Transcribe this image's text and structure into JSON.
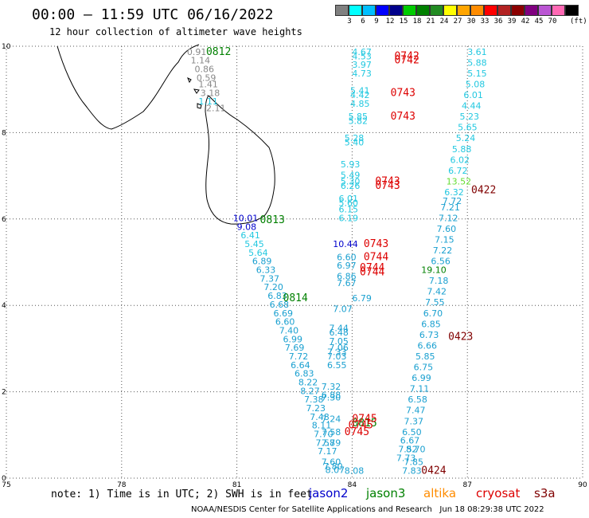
{
  "header": {
    "title": "00:00 – 11:59 UTC 06/16/2022",
    "subtitle": "12 hour collection of altimeter wave heights"
  },
  "legend": {
    "colors": [
      "#808080",
      "#00ffff",
      "#00bfff",
      "#0000ff",
      "#00008b",
      "#00cc00",
      "#008000",
      "#228b22",
      "#ffff00",
      "#ffa500",
      "#ff8c00",
      "#ff0000",
      "#b22222",
      "#8b0000",
      "#800080",
      "#ba55d3",
      "#ff69b4",
      "#000000"
    ],
    "labels": [
      "3",
      "6",
      "9",
      "12",
      "15",
      "18",
      "21",
      "24",
      "27",
      "30",
      "33",
      "36",
      "39",
      "42",
      "45",
      "70"
    ],
    "unit": "(ft)"
  },
  "footer": {
    "note": "note: 1) Time is in UTC; 2) SWH is in feet",
    "satellites": [
      {
        "name": "jason2",
        "color": "#0000cc"
      },
      {
        "name": "jason3",
        "color": "#008000"
      },
      {
        "name": "altika",
        "color": "#ff8c00"
      },
      {
        "name": "cryosat",
        "color": "#dd0000"
      },
      {
        "name": "s3a",
        "color": "#800000"
      }
    ],
    "credit": "NOAA/NESDIS Center for Satellite Applications and Research",
    "timestamp": "Jun 18 08:29:38 UTC 2022"
  },
  "chart_data": {
    "type": "scatter",
    "title": "12 hour collection of altimeter wave heights",
    "xlim": [
      75,
      90
    ],
    "ylim": [
      0,
      10
    ],
    "xticks": [
      75,
      78,
      81,
      84,
      87,
      90
    ],
    "yticks": [
      0,
      2,
      4,
      6,
      8,
      10
    ],
    "grid": true,
    "colors": {
      "light": "#22c8e0",
      "mid": "#1aa0d0",
      "gray": "#888888",
      "blue": "#0000cc",
      "green": "#008000",
      "lime": "#66dd33",
      "red": "#dd0000",
      "maroon": "#800000"
    },
    "time_labels": [
      {
        "text": "0812",
        "x": 80.2,
        "y": 9.8,
        "c": "green"
      },
      {
        "text": "0813",
        "x": 81.6,
        "y": 5.9,
        "c": "green"
      },
      {
        "text": "0814",
        "x": 82.2,
        "y": 4.1,
        "c": "green"
      },
      {
        "text": "0815",
        "x": 84.0,
        "y": 1.2,
        "c": "green"
      },
      {
        "text": "0742",
        "x": 85.1,
        "y": 9.7,
        "c": "red"
      },
      {
        "text": "0742",
        "x": 85.1,
        "y": 9.6,
        "c": "red"
      },
      {
        "text": "0743",
        "x": 85.0,
        "y": 8.85,
        "c": "red"
      },
      {
        "text": "0743",
        "x": 85.0,
        "y": 8.3,
        "c": "red"
      },
      {
        "text": "0743",
        "x": 84.6,
        "y": 6.8,
        "c": "red"
      },
      {
        "text": "0743",
        "x": 84.6,
        "y": 6.7,
        "c": "red"
      },
      {
        "text": "0743",
        "x": 84.3,
        "y": 5.35,
        "c": "red"
      },
      {
        "text": "0744",
        "x": 84.3,
        "y": 5.05,
        "c": "red"
      },
      {
        "text": "0744",
        "x": 84.2,
        "y": 4.8,
        "c": "red"
      },
      {
        "text": "0744",
        "x": 84.2,
        "y": 4.7,
        "c": "red"
      },
      {
        "text": "0745",
        "x": 84.0,
        "y": 1.3,
        "c": "red"
      },
      {
        "text": "0745",
        "x": 83.9,
        "y": 1.15,
        "c": "red"
      },
      {
        "text": "0745",
        "x": 83.8,
        "y": 1.0,
        "c": "red"
      },
      {
        "text": "0422",
        "x": 87.1,
        "y": 6.6,
        "c": "maroon"
      },
      {
        "text": "0423",
        "x": 86.5,
        "y": 3.2,
        "c": "maroon"
      },
      {
        "text": "0424",
        "x": 85.8,
        "y": 0.1,
        "c": "maroon"
      }
    ],
    "wave_heights": [
      {
        "text": "0.91",
        "x": 79.7,
        "y": 9.8,
        "c": "gray"
      },
      {
        "text": "1.14",
        "x": 79.8,
        "y": 9.6,
        "c": "gray"
      },
      {
        "text": "0.86",
        "x": 79.9,
        "y": 9.4,
        "c": "gray"
      },
      {
        "text": "0.59",
        "x": 79.95,
        "y": 9.2,
        "c": "gray"
      },
      {
        "text": "1.41",
        "x": 80.0,
        "y": 9.05,
        "c": "gray"
      },
      {
        "text": "3.18",
        "x": 80.05,
        "y": 8.85,
        "c": "gray"
      },
      {
        "text": "1.11",
        "x": 80.0,
        "y": 8.65,
        "c": "light"
      },
      {
        "text": "2.11",
        "x": 80.2,
        "y": 8.5,
        "c": "gray"
      },
      {
        "text": "10.01",
        "x": 80.9,
        "y": 5.95,
        "c": "blue"
      },
      {
        "text": "9.08",
        "x": 81.0,
        "y": 5.75,
        "c": "blue"
      },
      {
        "text": "6.41",
        "x": 81.1,
        "y": 5.55,
        "c": "light"
      },
      {
        "text": "5.45",
        "x": 81.2,
        "y": 5.35,
        "c": "light"
      },
      {
        "text": "5.64",
        "x": 81.3,
        "y": 5.15,
        "c": "light"
      },
      {
        "text": "6.89",
        "x": 81.4,
        "y": 4.95,
        "c": "mid"
      },
      {
        "text": "6.33",
        "x": 81.5,
        "y": 4.75,
        "c": "mid"
      },
      {
        "text": "7.37",
        "x": 81.6,
        "y": 4.55,
        "c": "mid"
      },
      {
        "text": "7.20",
        "x": 81.7,
        "y": 4.35,
        "c": "mid"
      },
      {
        "text": "6.83",
        "x": 81.8,
        "y": 4.15,
        "c": "mid"
      },
      {
        "text": "6.68",
        "x": 81.85,
        "y": 3.95,
        "c": "mid"
      },
      {
        "text": "6.69",
        "x": 81.95,
        "y": 3.75,
        "c": "mid"
      },
      {
        "text": "6.60",
        "x": 82.0,
        "y": 3.55,
        "c": "mid"
      },
      {
        "text": "7.40",
        "x": 82.1,
        "y": 3.35,
        "c": "mid"
      },
      {
        "text": "6.99",
        "x": 82.2,
        "y": 3.15,
        "c": "mid"
      },
      {
        "text": "7.69",
        "x": 82.25,
        "y": 2.95,
        "c": "mid"
      },
      {
        "text": "7.72",
        "x": 82.35,
        "y": 2.75,
        "c": "mid"
      },
      {
        "text": "6.64",
        "x": 82.4,
        "y": 2.55,
        "c": "mid"
      },
      {
        "text": "6.83",
        "x": 82.5,
        "y": 2.35,
        "c": "mid"
      },
      {
        "text": "8.22",
        "x": 82.6,
        "y": 2.15,
        "c": "mid"
      },
      {
        "text": "8.27",
        "x": 82.65,
        "y": 1.95,
        "c": "mid"
      },
      {
        "text": "7.38",
        "x": 82.75,
        "y": 1.75,
        "c": "mid"
      },
      {
        "text": "7.23",
        "x": 82.8,
        "y": 1.55,
        "c": "mid"
      },
      {
        "text": "7.48",
        "x": 82.9,
        "y": 1.35,
        "c": "mid"
      },
      {
        "text": "8.11",
        "x": 82.95,
        "y": 1.15,
        "c": "mid"
      },
      {
        "text": "7.70",
        "x": 83.0,
        "y": 0.95,
        "c": "mid"
      },
      {
        "text": "7.58",
        "x": 83.05,
        "y": 0.75,
        "c": "mid"
      },
      {
        "text": "7.17",
        "x": 83.1,
        "y": 0.55,
        "c": "mid"
      },
      {
        "text": "7.60",
        "x": 83.2,
        "y": 0.3,
        "c": "mid"
      },
      {
        "text": "7.80",
        "x": 83.25,
        "y": 0.2,
        "c": "mid"
      },
      {
        "text": "8.07",
        "x": 83.3,
        "y": 0.12,
        "c": "mid"
      },
      {
        "text": "8.08",
        "x": 83.8,
        "y": 0.1,
        "c": "mid"
      },
      {
        "text": "4.67",
        "x": 84.0,
        "y": 9.8,
        "c": "light"
      },
      {
        "text": "4.53",
        "x": 84.0,
        "y": 9.7,
        "c": "light"
      },
      {
        "text": "3.97",
        "x": 84.0,
        "y": 9.5,
        "c": "light"
      },
      {
        "text": "4.73",
        "x": 84.0,
        "y": 9.3,
        "c": "light"
      },
      {
        "text": "5.41",
        "x": 83.95,
        "y": 8.9,
        "c": "light"
      },
      {
        "text": "4.42",
        "x": 83.95,
        "y": 8.8,
        "c": "light"
      },
      {
        "text": "4.85",
        "x": 83.95,
        "y": 8.6,
        "c": "light"
      },
      {
        "text": "5.85",
        "x": 83.9,
        "y": 8.3,
        "c": "light"
      },
      {
        "text": "5.82",
        "x": 83.9,
        "y": 8.2,
        "c": "light"
      },
      {
        "text": "5.28",
        "x": 83.8,
        "y": 7.8,
        "c": "light"
      },
      {
        "text": "5.40",
        "x": 83.8,
        "y": 7.7,
        "c": "light"
      },
      {
        "text": "5.93",
        "x": 83.7,
        "y": 7.2,
        "c": "light"
      },
      {
        "text": "5.49",
        "x": 83.7,
        "y": 6.95,
        "c": "light"
      },
      {
        "text": "5.30",
        "x": 83.7,
        "y": 6.8,
        "c": "light"
      },
      {
        "text": "6.26",
        "x": 83.7,
        "y": 6.7,
        "c": "light"
      },
      {
        "text": "6.01",
        "x": 83.65,
        "y": 6.4,
        "c": "light"
      },
      {
        "text": "5.60",
        "x": 83.65,
        "y": 6.3,
        "c": "light"
      },
      {
        "text": "6.15",
        "x": 83.65,
        "y": 6.15,
        "c": "light"
      },
      {
        "text": "6.19",
        "x": 83.65,
        "y": 5.95,
        "c": "light"
      },
      {
        "text": "10.44",
        "x": 83.5,
        "y": 5.35,
        "c": "blue"
      },
      {
        "text": "6.60",
        "x": 83.6,
        "y": 5.05,
        "c": "mid"
      },
      {
        "text": "6.97",
        "x": 83.6,
        "y": 4.85,
        "c": "mid"
      },
      {
        "text": "6.86",
        "x": 83.6,
        "y": 4.6,
        "c": "mid"
      },
      {
        "text": "7.67",
        "x": 83.6,
        "y": 4.45,
        "c": "mid"
      },
      {
        "text": "6.79",
        "x": 84.0,
        "y": 4.1,
        "c": "mid"
      },
      {
        "text": "7.07",
        "x": 83.5,
        "y": 3.85,
        "c": "mid"
      },
      {
        "text": "7.44",
        "x": 83.4,
        "y": 3.4,
        "c": "mid"
      },
      {
        "text": "6.48",
        "x": 83.4,
        "y": 3.3,
        "c": "mid"
      },
      {
        "text": "7.05",
        "x": 83.4,
        "y": 3.1,
        "c": "mid"
      },
      {
        "text": "7.06",
        "x": 83.4,
        "y": 2.95,
        "c": "mid"
      },
      {
        "text": "7.33",
        "x": 83.35,
        "y": 2.85,
        "c": "mid"
      },
      {
        "text": "7.03",
        "x": 83.35,
        "y": 2.75,
        "c": "mid"
      },
      {
        "text": "6.55",
        "x": 83.35,
        "y": 2.55,
        "c": "mid"
      },
      {
        "text": "7.32",
        "x": 83.2,
        "y": 2.05,
        "c": "mid"
      },
      {
        "text": "6.88",
        "x": 83.2,
        "y": 1.85,
        "c": "mid"
      },
      {
        "text": "7.30",
        "x": 83.2,
        "y": 1.8,
        "c": "mid"
      },
      {
        "text": "7.24",
        "x": 83.2,
        "y": 1.3,
        "c": "mid"
      },
      {
        "text": "7.58",
        "x": 83.2,
        "y": 1.0,
        "c": "mid"
      },
      {
        "text": "7.79",
        "x": 83.2,
        "y": 0.75,
        "c": "mid"
      },
      {
        "text": "3.61",
        "x": 87.0,
        "y": 9.8,
        "c": "light"
      },
      {
        "text": "5.88",
        "x": 87.0,
        "y": 9.55,
        "c": "light"
      },
      {
        "text": "5.15",
        "x": 87.0,
        "y": 9.3,
        "c": "light"
      },
      {
        "text": "5.08",
        "x": 86.95,
        "y": 9.05,
        "c": "light"
      },
      {
        "text": "6.01",
        "x": 86.9,
        "y": 8.8,
        "c": "light"
      },
      {
        "text": "4.44",
        "x": 86.85,
        "y": 8.55,
        "c": "light"
      },
      {
        "text": "5.23",
        "x": 86.8,
        "y": 8.3,
        "c": "light"
      },
      {
        "text": "5.65",
        "x": 86.75,
        "y": 8.05,
        "c": "light"
      },
      {
        "text": "5.24",
        "x": 86.7,
        "y": 7.8,
        "c": "light"
      },
      {
        "text": "5.88",
        "x": 86.6,
        "y": 7.55,
        "c": "light"
      },
      {
        "text": "6.02",
        "x": 86.55,
        "y": 7.3,
        "c": "light"
      },
      {
        "text": "6.72",
        "x": 86.5,
        "y": 7.05,
        "c": "light"
      },
      {
        "text": "13.52",
        "x": 86.45,
        "y": 6.8,
        "c": "lime"
      },
      {
        "text": "6.32",
        "x": 86.4,
        "y": 6.55,
        "c": "light"
      },
      {
        "text": "7.72",
        "x": 86.35,
        "y": 6.35,
        "c": "mid"
      },
      {
        "text": "7.21",
        "x": 86.3,
        "y": 6.2,
        "c": "mid"
      },
      {
        "text": "7.12",
        "x": 86.25,
        "y": 5.95,
        "c": "mid"
      },
      {
        "text": "7.60",
        "x": 86.2,
        "y": 5.7,
        "c": "mid"
      },
      {
        "text": "7.15",
        "x": 86.15,
        "y": 5.45,
        "c": "mid"
      },
      {
        "text": "7.22",
        "x": 86.1,
        "y": 5.2,
        "c": "mid"
      },
      {
        "text": "6.56",
        "x": 86.05,
        "y": 4.95,
        "c": "mid"
      },
      {
        "text": "19.10",
        "x": 85.8,
        "y": 4.75,
        "c": "green"
      },
      {
        "text": "7.18",
        "x": 86.0,
        "y": 4.5,
        "c": "mid"
      },
      {
        "text": "7.42",
        "x": 85.95,
        "y": 4.25,
        "c": "mid"
      },
      {
        "text": "7.55",
        "x": 85.9,
        "y": 4.0,
        "c": "mid"
      },
      {
        "text": "6.70",
        "x": 85.85,
        "y": 3.75,
        "c": "mid"
      },
      {
        "text": "6.85",
        "x": 85.8,
        "y": 3.5,
        "c": "mid"
      },
      {
        "text": "6.73",
        "x": 85.75,
        "y": 3.25,
        "c": "mid"
      },
      {
        "text": "6.66",
        "x": 85.7,
        "y": 3.0,
        "c": "mid"
      },
      {
        "text": "5.85",
        "x": 85.65,
        "y": 2.75,
        "c": "mid"
      },
      {
        "text": "6.75",
        "x": 85.6,
        "y": 2.5,
        "c": "mid"
      },
      {
        "text": "6.99",
        "x": 85.55,
        "y": 2.25,
        "c": "mid"
      },
      {
        "text": "7.11",
        "x": 85.5,
        "y": 2.0,
        "c": "mid"
      },
      {
        "text": "6.58",
        "x": 85.45,
        "y": 1.75,
        "c": "mid"
      },
      {
        "text": "7.47",
        "x": 85.4,
        "y": 1.5,
        "c": "mid"
      },
      {
        "text": "7.37",
        "x": 85.35,
        "y": 1.25,
        "c": "mid"
      },
      {
        "text": "6.50",
        "x": 85.3,
        "y": 1.0,
        "c": "mid"
      },
      {
        "text": "6.67",
        "x": 85.25,
        "y": 0.8,
        "c": "mid"
      },
      {
        "text": "7.52",
        "x": 85.2,
        "y": 0.6,
        "c": "mid"
      },
      {
        "text": "7.73",
        "x": 85.15,
        "y": 0.4,
        "c": "mid"
      },
      {
        "text": "8.70",
        "x": 85.4,
        "y": 0.6,
        "c": "mid"
      },
      {
        "text": "7.85",
        "x": 85.35,
        "y": 0.3,
        "c": "mid"
      },
      {
        "text": "7.83",
        "x": 85.3,
        "y": 0.1,
        "c": "mid"
      }
    ]
  }
}
